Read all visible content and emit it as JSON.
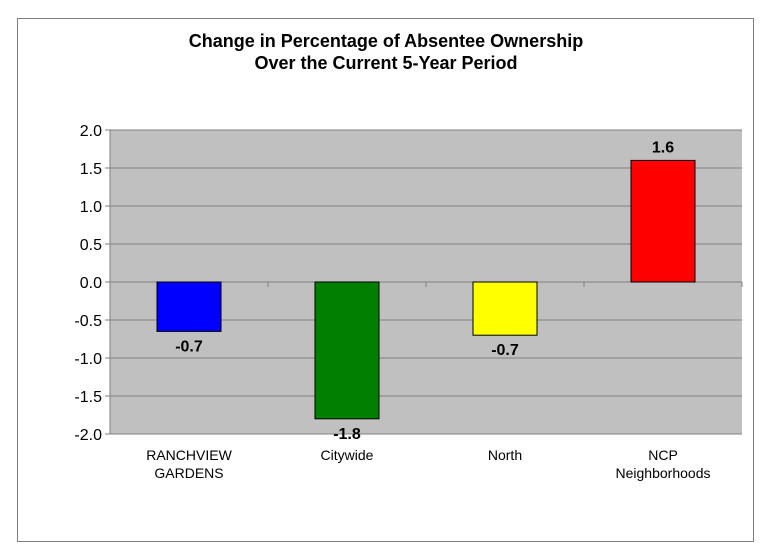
{
  "chart_data": {
    "type": "bar",
    "title": "Change in Percentage of Absentee Ownership Over the Current 5-Year Period",
    "title_lines": [
      "Change in Percentage of Absentee Ownership",
      "Over the Current 5-Year Period"
    ],
    "xlabel": "",
    "ylabel": "",
    "categories": [
      [
        "RANCHVIEW",
        "GARDENS"
      ],
      [
        "Citywide"
      ],
      [
        "North"
      ],
      [
        "NCP",
        "Neighborhoods"
      ]
    ],
    "values": [
      -0.65,
      -1.8,
      -0.7,
      1.6
    ],
    "data_labels": [
      "-0.7",
      "-1.8",
      "-0.7",
      "1.6"
    ],
    "bar_colors": [
      "#0000ff",
      "#007f00",
      "#ffff00",
      "#ff0000"
    ],
    "ylim": [
      -2.0,
      2.0
    ],
    "yticks": [
      "2.0",
      "1.5",
      "1.0",
      "0.5",
      "0.0",
      "-0.5",
      "-1.0",
      "-1.5",
      "-2.0"
    ],
    "ytick_values": [
      2.0,
      1.5,
      1.0,
      0.5,
      0.0,
      -0.5,
      -1.0,
      -1.5,
      -2.0
    ],
    "grid": true,
    "legend": "none",
    "plot_background": "#c0c0c0",
    "gridline_color": "#7f7f7f"
  }
}
